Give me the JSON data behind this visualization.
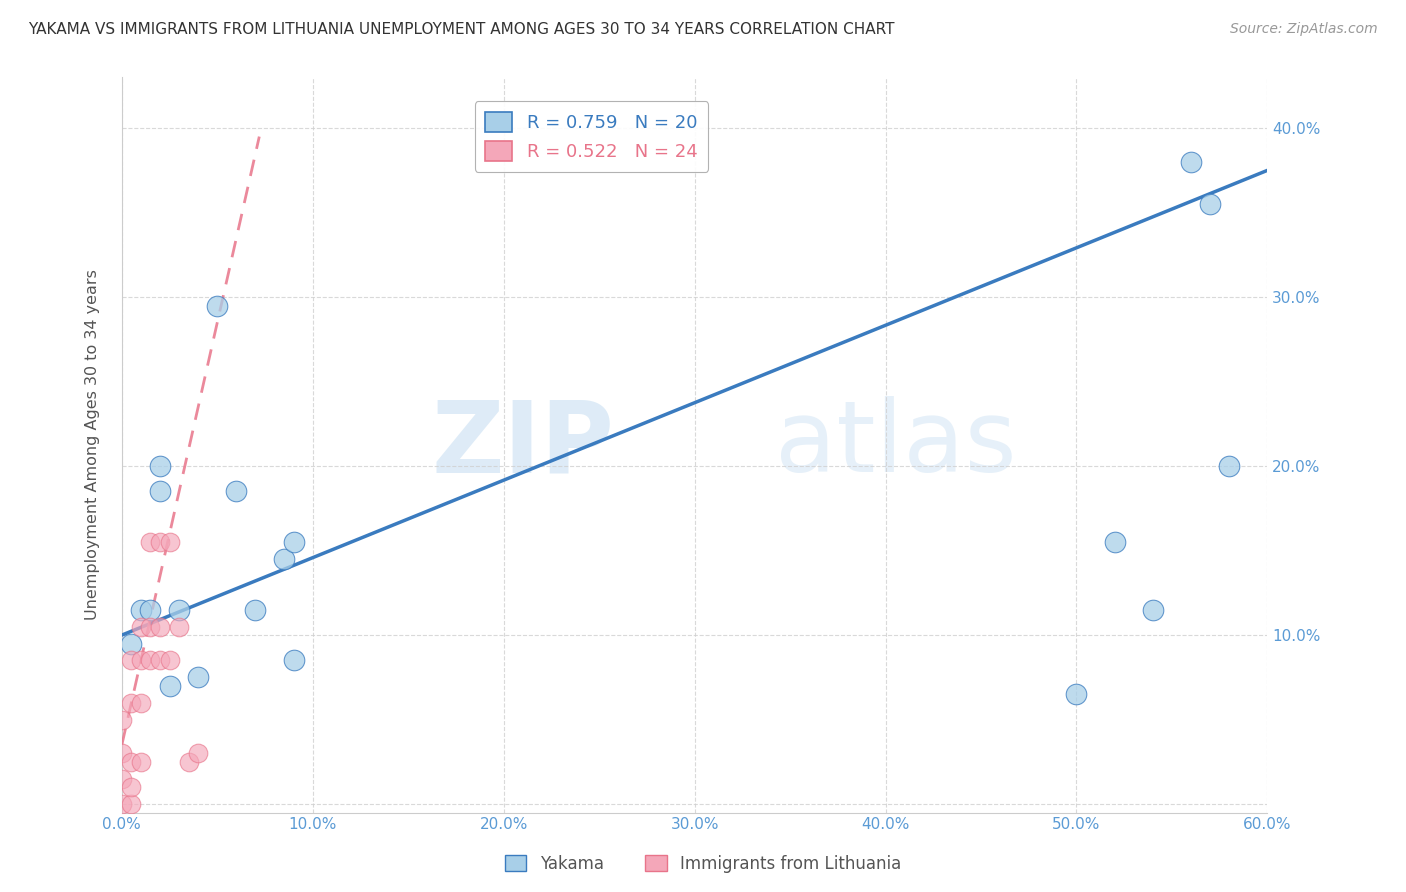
{
  "title": "YAKAMA VS IMMIGRANTS FROM LITHUANIA UNEMPLOYMENT AMONG AGES 30 TO 34 YEARS CORRELATION CHART",
  "source": "Source: ZipAtlas.com",
  "ylabel": "Unemployment Among Ages 30 to 34 years",
  "xlim": [
    0,
    0.6
  ],
  "ylim": [
    -0.005,
    0.43
  ],
  "yticks": [
    0.0,
    0.1,
    0.2,
    0.3,
    0.4
  ],
  "xticks": [
    0.0,
    0.1,
    0.2,
    0.3,
    0.4,
    0.5,
    0.6
  ],
  "ytick_labels": [
    "",
    "10.0%",
    "20.0%",
    "30.0%",
    "40.0%"
  ],
  "xtick_labels": [
    "0.0%",
    "10.0%",
    "20.0%",
    "30.0%",
    "40.0%",
    "50.0%",
    "60.0%"
  ],
  "watermark_part1": "ZIP",
  "watermark_part2": "atlas",
  "yakama_R": 0.759,
  "yakama_N": 20,
  "lithuania_R": 0.522,
  "lithuania_N": 24,
  "yakama_color": "#a8cfe8",
  "lithuania_color": "#f4a7b9",
  "line_color_yakama": "#3a7bbf",
  "line_color_lithuania": "#e8748a",
  "yakama_points_x": [
    0.005,
    0.01,
    0.015,
    0.02,
    0.02,
    0.025,
    0.03,
    0.04,
    0.05,
    0.06,
    0.07,
    0.085,
    0.09,
    0.09,
    0.5,
    0.52,
    0.54,
    0.56,
    0.57,
    0.58
  ],
  "yakama_points_y": [
    0.095,
    0.115,
    0.115,
    0.185,
    0.2,
    0.07,
    0.115,
    0.075,
    0.295,
    0.185,
    0.115,
    0.145,
    0.085,
    0.155,
    0.065,
    0.155,
    0.115,
    0.38,
    0.355,
    0.2
  ],
  "lithuania_points_x": [
    0.0,
    0.0,
    0.0,
    0.0,
    0.005,
    0.005,
    0.005,
    0.005,
    0.005,
    0.01,
    0.01,
    0.01,
    0.01,
    0.015,
    0.015,
    0.015,
    0.02,
    0.02,
    0.02,
    0.025,
    0.025,
    0.03,
    0.035,
    0.04
  ],
  "lithuania_points_y": [
    0.0,
    0.015,
    0.03,
    0.05,
    0.0,
    0.01,
    0.025,
    0.06,
    0.085,
    0.025,
    0.06,
    0.085,
    0.105,
    0.085,
    0.105,
    0.155,
    0.085,
    0.105,
    0.155,
    0.085,
    0.155,
    0.105,
    0.025,
    0.03
  ],
  "yakama_line_x0": 0.0,
  "yakama_line_y0": 0.1,
  "yakama_line_x1": 0.6,
  "yakama_line_y1": 0.375,
  "lithuania_line_x0": 0.0,
  "lithuania_line_y0": 0.035,
  "lithuania_line_x1": 0.072,
  "lithuania_line_y1": 0.395,
  "background_color": "#ffffff",
  "grid_color": "#d0d0d0",
  "title_color": "#333333",
  "axis_label_color": "#555555",
  "tick_color": "#5b9bd5",
  "legend_bg": "#ffffff",
  "legend_alpha": 0.9
}
